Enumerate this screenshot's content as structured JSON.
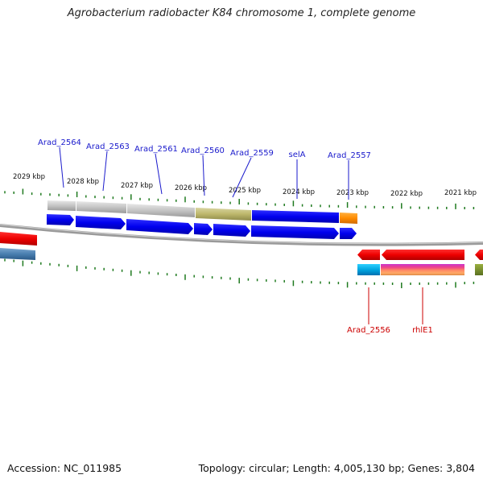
{
  "title": "Agrobacterium radiobacter K84 chromosome 1, complete genome",
  "footer": {
    "accession": "Accession: NC_011985",
    "summary": "Topology: circular; Length: 4,005,130 bp; Genes: 3,804"
  },
  "scale": {
    "unit": "kbp",
    "labels": [
      "2029 kbp",
      "2028 kbp",
      "2027 kbp",
      "2026 kbp",
      "2025 kbp",
      "2024 kbp",
      "2023 kbp",
      "2022 kbp",
      "2021 kbp"
    ]
  },
  "genes_forward": [
    "Arad_2564",
    "Arad_2563",
    "Arad_2561",
    "Arad_2560",
    "Arad_2559",
    "selA",
    "Arad_2557"
  ],
  "genes_reverse": [
    "Arad_2556",
    "rhlE1"
  ],
  "colors": {
    "forward_label": "#1a1acc",
    "reverse_label": "#cc0000",
    "forward_gene": "#0000ee",
    "reverse_gene": "#ee0000",
    "tick": "#1f7a1f",
    "backbone": "#808080"
  }
}
